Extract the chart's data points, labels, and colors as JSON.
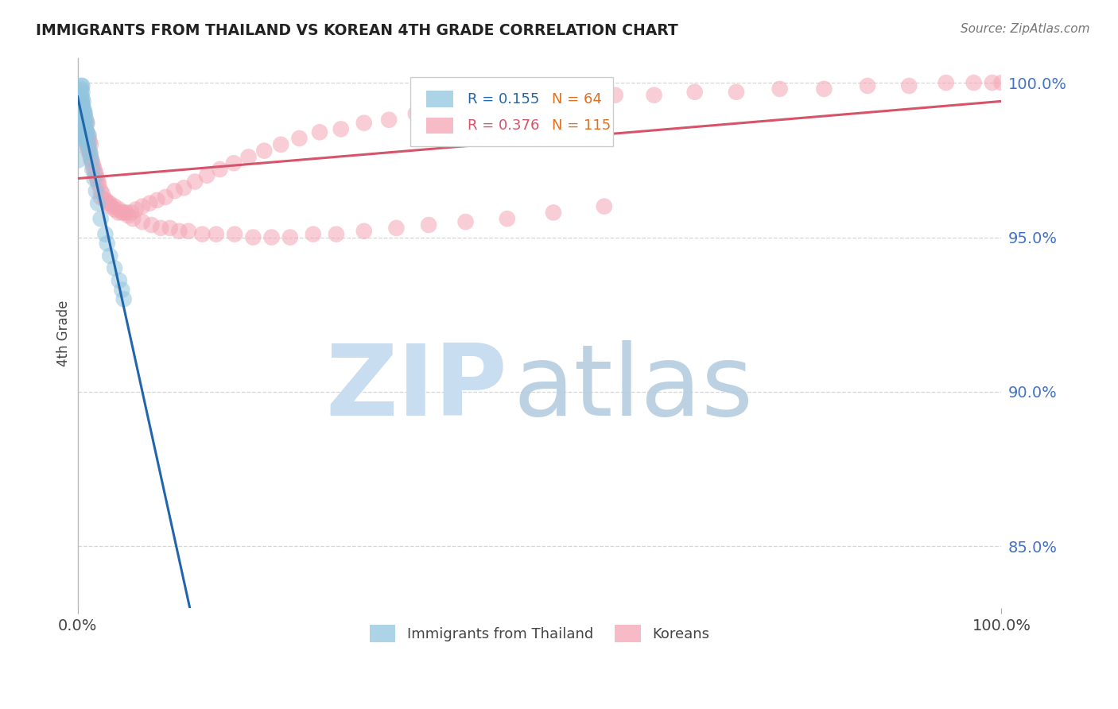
{
  "title": "IMMIGRANTS FROM THAILAND VS KOREAN 4TH GRADE CORRELATION CHART",
  "source": "Source: ZipAtlas.com",
  "ylabel": "4th Grade",
  "ytick_values": [
    0.85,
    0.9,
    0.95,
    1.0
  ],
  "ytick_labels": [
    "85.0%",
    "90.0%",
    "95.0%",
    "100.0%"
  ],
  "xtick_labels": [
    "0.0%",
    "100.0%"
  ],
  "xlim": [
    0.0,
    1.0
  ],
  "ylim": [
    0.83,
    1.008
  ],
  "blue_color": "#92c5de",
  "pink_color": "#f4a5b5",
  "blue_line_color": "#2166ac",
  "pink_line_color": "#d6546a",
  "blue_r": "0.155",
  "blue_n": "64",
  "pink_r": "0.376",
  "pink_n": "115",
  "n_color": "#e07020",
  "legend_label1": "Immigrants from Thailand",
  "legend_label2": "Koreans",
  "watermark_zip_color": "#c8ddf0",
  "watermark_atlas_color": "#b5cde0",
  "grid_color": "#cccccc",
  "tick_color_y": "#4472c4",
  "tick_color_x": "#444444",
  "title_color": "#222222",
  "source_color": "#777777",
  "ylabel_color": "#444444",
  "blue_scatter_x": [
    0.001,
    0.001,
    0.002,
    0.002,
    0.002,
    0.003,
    0.003,
    0.003,
    0.003,
    0.003,
    0.004,
    0.004,
    0.004,
    0.004,
    0.004,
    0.004,
    0.004,
    0.004,
    0.004,
    0.005,
    0.005,
    0.005,
    0.005,
    0.005,
    0.005,
    0.005,
    0.005,
    0.005,
    0.006,
    0.006,
    0.006,
    0.006,
    0.006,
    0.006,
    0.007,
    0.007,
    0.007,
    0.007,
    0.008,
    0.008,
    0.008,
    0.009,
    0.009,
    0.009,
    0.01,
    0.01,
    0.01,
    0.012,
    0.012,
    0.013,
    0.014,
    0.015,
    0.016,
    0.018,
    0.02,
    0.022,
    0.025,
    0.03,
    0.032,
    0.035,
    0.04,
    0.045,
    0.048,
    0.05
  ],
  "blue_scatter_y": [
    0.975,
    0.98,
    0.985,
    0.988,
    0.992,
    0.984,
    0.987,
    0.99,
    0.993,
    0.995,
    0.983,
    0.986,
    0.988,
    0.99,
    0.992,
    0.994,
    0.996,
    0.998,
    0.999,
    0.982,
    0.985,
    0.987,
    0.989,
    0.991,
    0.993,
    0.995,
    0.997,
    0.999,
    0.984,
    0.986,
    0.988,
    0.99,
    0.992,
    0.994,
    0.983,
    0.986,
    0.989,
    0.991,
    0.984,
    0.987,
    0.99,
    0.982,
    0.985,
    0.988,
    0.981,
    0.984,
    0.987,
    0.98,
    0.983,
    0.978,
    0.977,
    0.975,
    0.972,
    0.969,
    0.965,
    0.961,
    0.956,
    0.951,
    0.948,
    0.944,
    0.94,
    0.936,
    0.933,
    0.93
  ],
  "pink_scatter_x": [
    0.002,
    0.003,
    0.003,
    0.004,
    0.004,
    0.005,
    0.005,
    0.005,
    0.006,
    0.006,
    0.006,
    0.007,
    0.007,
    0.007,
    0.008,
    0.008,
    0.008,
    0.009,
    0.009,
    0.01,
    0.01,
    0.01,
    0.011,
    0.011,
    0.012,
    0.012,
    0.013,
    0.013,
    0.014,
    0.014,
    0.015,
    0.016,
    0.017,
    0.018,
    0.019,
    0.02,
    0.021,
    0.022,
    0.023,
    0.025,
    0.027,
    0.03,
    0.033,
    0.036,
    0.04,
    0.044,
    0.048,
    0.053,
    0.058,
    0.063,
    0.07,
    0.078,
    0.086,
    0.095,
    0.105,
    0.115,
    0.127,
    0.14,
    0.154,
    0.169,
    0.185,
    0.202,
    0.22,
    0.24,
    0.262,
    0.285,
    0.31,
    0.337,
    0.366,
    0.397,
    0.43,
    0.465,
    0.502,
    0.541,
    0.582,
    0.624,
    0.668,
    0.713,
    0.76,
    0.808,
    0.855,
    0.9,
    0.94,
    0.97,
    0.99,
    1.0,
    0.025,
    0.03,
    0.035,
    0.04,
    0.045,
    0.05,
    0.055,
    0.06,
    0.07,
    0.08,
    0.09,
    0.1,
    0.11,
    0.12,
    0.135,
    0.15,
    0.17,
    0.19,
    0.21,
    0.23,
    0.255,
    0.28,
    0.31,
    0.345,
    0.38,
    0.42,
    0.465,
    0.515,
    0.57
  ],
  "pink_scatter_y": [
    0.987,
    0.989,
    0.992,
    0.985,
    0.99,
    0.986,
    0.99,
    0.993,
    0.984,
    0.988,
    0.991,
    0.983,
    0.987,
    0.99,
    0.982,
    0.986,
    0.989,
    0.981,
    0.985,
    0.98,
    0.984,
    0.987,
    0.979,
    0.983,
    0.978,
    0.982,
    0.977,
    0.981,
    0.976,
    0.98,
    0.975,
    0.974,
    0.973,
    0.972,
    0.971,
    0.97,
    0.969,
    0.968,
    0.967,
    0.965,
    0.964,
    0.962,
    0.961,
    0.96,
    0.959,
    0.958,
    0.958,
    0.958,
    0.958,
    0.959,
    0.96,
    0.961,
    0.962,
    0.963,
    0.965,
    0.966,
    0.968,
    0.97,
    0.972,
    0.974,
    0.976,
    0.978,
    0.98,
    0.982,
    0.984,
    0.985,
    0.987,
    0.988,
    0.99,
    0.991,
    0.992,
    0.993,
    0.994,
    0.995,
    0.996,
    0.996,
    0.997,
    0.997,
    0.998,
    0.998,
    0.999,
    0.999,
    1.0,
    1.0,
    1.0,
    1.0,
    0.963,
    0.962,
    0.961,
    0.96,
    0.959,
    0.958,
    0.957,
    0.956,
    0.955,
    0.954,
    0.953,
    0.953,
    0.952,
    0.952,
    0.951,
    0.951,
    0.951,
    0.95,
    0.95,
    0.95,
    0.951,
    0.951,
    0.952,
    0.953,
    0.954,
    0.955,
    0.956,
    0.958,
    0.96
  ]
}
